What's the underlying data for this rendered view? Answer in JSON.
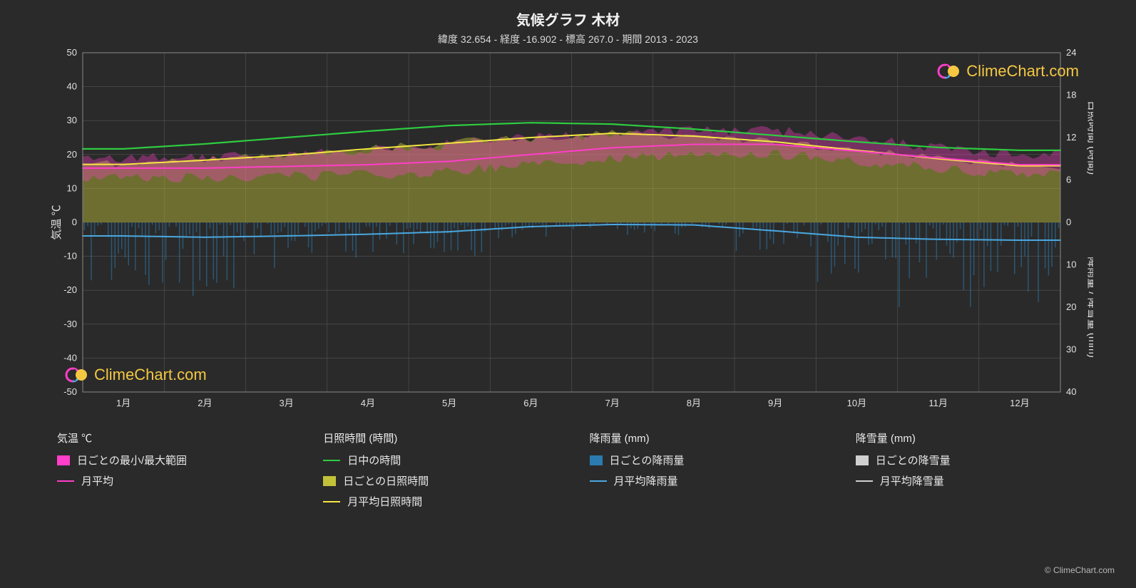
{
  "title": "気候グラフ 木材",
  "subtitle": "緯度 32.654 - 経度 -16.902 - 標高 267.0 - 期間 2013 - 2023",
  "watermark": "ClimeChart.com",
  "attribution": "© ClimeChart.com",
  "chart": {
    "type": "climate-composite",
    "background_color": "#2a2a2a",
    "plot_bg": "#2a2a2a",
    "grid_color": "#555555",
    "border_color": "#888888",
    "left_axis": {
      "label": "気温 ℃",
      "min": -50,
      "max": 50,
      "tick_step": 10,
      "ticks": [
        -50,
        -40,
        -30,
        -20,
        -10,
        0,
        10,
        20,
        30,
        40,
        50
      ],
      "zero_line": true
    },
    "right_axis_top": {
      "label": "日照時間 (時間)",
      "min": 0,
      "max": 24,
      "ticks": [
        0,
        6,
        12,
        18,
        24
      ],
      "maps_to_temp": [
        0,
        50
      ]
    },
    "right_axis_bottom": {
      "label": "降雨量 / 降雪量 (mm)",
      "min": 0,
      "max": 40,
      "ticks": [
        0,
        10,
        20,
        30,
        40
      ],
      "maps_to_temp": [
        0,
        -50
      ]
    },
    "months": [
      "1月",
      "2月",
      "3月",
      "4月",
      "5月",
      "6月",
      "7月",
      "8月",
      "9月",
      "10月",
      "11月",
      "12月"
    ],
    "series": {
      "daylight_hours_line": {
        "color": "#2ecc40",
        "width": 2.2,
        "values_hours": [
          10.4,
          11.1,
          12.0,
          12.9,
          13.7,
          14.1,
          13.9,
          13.2,
          12.3,
          11.4,
          10.6,
          10.2
        ]
      },
      "avg_sunshine_line": {
        "color": "#f5e642",
        "width": 2.0,
        "values_hours": [
          8.2,
          8.8,
          9.5,
          10.4,
          11.2,
          12.0,
          12.6,
          12.2,
          11.4,
          10.2,
          9.0,
          8.0
        ]
      },
      "temp_monthly_avg_line": {
        "color": "#ff3ec9",
        "width": 2.0,
        "values_c": [
          16,
          16,
          16.5,
          17,
          18,
          20,
          22,
          23,
          23,
          21,
          19,
          17
        ]
      },
      "rain_monthly_avg_line": {
        "color": "#4aa8e0",
        "width": 2.0,
        "values_mm": [
          3.2,
          3.5,
          3.2,
          2.8,
          2.2,
          1.0,
          0.5,
          0.6,
          2.0,
          3.5,
          4.0,
          4.2
        ]
      },
      "daily_temp_range_band": {
        "color": "#ff3ec9",
        "opacity": 0.35,
        "low_c": [
          13,
          13,
          13.5,
          14,
          15,
          17,
          19,
          20,
          20,
          18,
          16,
          14
        ],
        "high_c": [
          19,
          19,
          20,
          21,
          23,
          25,
          26,
          27,
          27,
          25,
          22,
          20
        ]
      },
      "daily_sunshine_band": {
        "color": "#c2c23a",
        "opacity": 0.45,
        "low_hours": 0,
        "high_hours_by_month": [
          8.2,
          8.8,
          9.5,
          10.4,
          11.2,
          12.0,
          12.6,
          12.2,
          11.4,
          10.2,
          9.0,
          8.0
        ]
      },
      "daily_rain_spikes": {
        "color": "#2b7bb0",
        "opacity": 0.55,
        "max_mm_by_month": [
          15,
          18,
          14,
          10,
          8,
          4,
          3,
          3,
          8,
          14,
          20,
          22
        ],
        "density_per_month": 24
      },
      "daily_snow_spikes": {
        "color": "#d0d0d0",
        "opacity": 0.5,
        "max_mm_by_month": [
          0,
          0,
          0,
          0,
          0,
          0,
          0,
          0,
          0,
          0,
          0,
          0
        ]
      },
      "snow_monthly_avg_line": {
        "color": "#d0d0d0",
        "width": 2.0,
        "values_mm": [
          0,
          0,
          0,
          0,
          0,
          0,
          0,
          0,
          0,
          0,
          0,
          0
        ]
      }
    }
  },
  "legend": {
    "columns": [
      {
        "heading": "気温 ℃",
        "items": [
          {
            "kind": "swatch",
            "color": "#ff3ec9",
            "label": "日ごとの最小/最大範囲"
          },
          {
            "kind": "line",
            "color": "#ff3ec9",
            "label": "月平均"
          }
        ]
      },
      {
        "heading": "日照時間 (時間)",
        "items": [
          {
            "kind": "line",
            "color": "#2ecc40",
            "label": "日中の時間"
          },
          {
            "kind": "swatch",
            "color": "#c2c23a",
            "label": "日ごとの日照時間"
          },
          {
            "kind": "line",
            "color": "#f5e642",
            "label": "月平均日照時間"
          }
        ]
      },
      {
        "heading": "降雨量 (mm)",
        "items": [
          {
            "kind": "swatch",
            "color": "#2b7bb0",
            "label": "日ごとの降雨量"
          },
          {
            "kind": "line",
            "color": "#4aa8e0",
            "label": "月平均降雨量"
          }
        ]
      },
      {
        "heading": "降雪量 (mm)",
        "items": [
          {
            "kind": "swatch",
            "color": "#d0d0d0",
            "label": "日ごとの降雪量"
          },
          {
            "kind": "line",
            "color": "#d0d0d0",
            "label": "月平均降雪量"
          }
        ]
      }
    ]
  }
}
